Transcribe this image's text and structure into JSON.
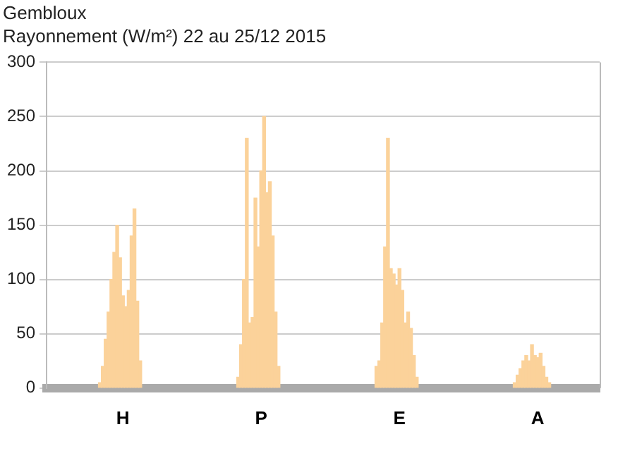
{
  "chart_data": {
    "type": "bar",
    "title": "Gembloux",
    "subtitle": "Rayonnement (W/m²) 22 au 25/12 2015",
    "categories": [
      null,
      null,
      null,
      null,
      null,
      null,
      null,
      null,
      null,
      null,
      null,
      null,
      null,
      null,
      null,
      null,
      null,
      null,
      null,
      null,
      null,
      null,
      null,
      null,
      null,
      null,
      "H",
      null,
      null,
      null,
      null,
      null,
      null,
      null,
      null,
      null,
      null,
      null,
      null,
      null,
      null,
      null,
      null,
      null,
      null,
      null,
      null,
      null,
      null,
      null,
      null,
      null,
      null,
      null,
      null,
      null,
      null,
      null,
      null,
      null,
      null,
      null,
      null,
      null,
      null,
      null,
      null,
      null,
      null,
      null,
      null,
      null,
      null,
      null,
      "P",
      null,
      null,
      null,
      null,
      null,
      null,
      null,
      null,
      null,
      null,
      null,
      null,
      null,
      null,
      null,
      null,
      null,
      null,
      null,
      null,
      null,
      null,
      null,
      null,
      null,
      null,
      null,
      null,
      null,
      null,
      null,
      null,
      null,
      null,
      null,
      null,
      null,
      null,
      null,
      null,
      null,
      null,
      null,
      null,
      null,
      null,
      null,
      "E",
      null,
      null,
      null,
      null,
      null,
      null,
      null,
      null,
      null,
      null,
      null,
      null,
      null,
      null,
      null,
      null,
      null,
      null,
      null,
      null,
      null,
      null,
      null,
      null,
      null,
      null,
      null,
      null,
      null,
      null,
      null,
      null,
      null,
      null,
      null,
      null,
      null,
      null,
      null,
      null,
      null,
      null,
      null,
      null,
      null,
      null,
      null,
      "A",
      null,
      null,
      null,
      null,
      null,
      null,
      null,
      null,
      null,
      null,
      null,
      null,
      null,
      null,
      null,
      null,
      null,
      null,
      null,
      null,
      null
    ],
    "values": [
      null,
      null,
      null,
      null,
      null,
      null,
      null,
      null,
      null,
      null,
      null,
      null,
      null,
      null,
      null,
      null,
      null,
      null,
      5,
      20,
      45,
      70,
      100,
      125,
      150,
      120,
      85,
      75,
      90,
      140,
      165,
      80,
      25,
      null,
      null,
      null,
      null,
      null,
      null,
      null,
      null,
      null,
      null,
      null,
      null,
      null,
      null,
      null,
      null,
      null,
      null,
      null,
      null,
      null,
      null,
      null,
      null,
      null,
      null,
      null,
      null,
      null,
      null,
      null,
      null,
      null,
      10,
      40,
      100,
      230,
      60,
      65,
      175,
      130,
      200,
      250,
      180,
      190,
      140,
      70,
      20,
      null,
      null,
      null,
      null,
      null,
      null,
      null,
      null,
      null,
      null,
      null,
      null,
      null,
      null,
      null,
      null,
      null,
      null,
      null,
      null,
      null,
      null,
      null,
      null,
      null,
      null,
      null,
      null,
      null,
      null,
      null,
      null,
      null,
      20,
      25,
      60,
      130,
      230,
      110,
      105,
      95,
      110,
      90,
      60,
      70,
      55,
      30,
      10,
      null,
      null,
      null,
      null,
      null,
      null,
      null,
      null,
      null,
      null,
      null,
      null,
      null,
      null,
      null,
      null,
      null,
      null,
      null,
      null,
      null,
      null,
      null,
      null,
      null,
      null,
      null,
      null,
      null,
      null,
      null,
      null,
      null,
      5,
      12,
      18,
      25,
      30,
      25,
      40,
      30,
      28,
      32,
      20,
      10,
      5,
      null,
      null,
      null,
      null,
      null,
      null,
      null,
      null,
      null,
      null,
      null,
      null,
      null,
      null,
      null,
      null,
      null
    ],
    "color": "#fbd29a",
    "ylim": [
      0,
      300
    ],
    "yticks": [
      0,
      50,
      100,
      150,
      200,
      250,
      300
    ],
    "grid": "y"
  }
}
